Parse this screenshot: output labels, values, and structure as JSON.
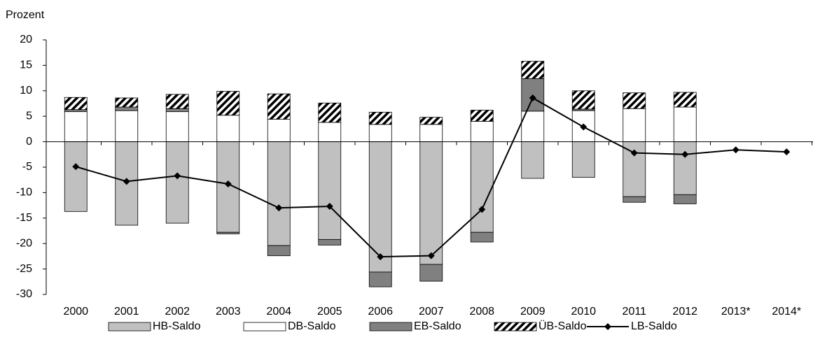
{
  "chart_data": {
    "type": "bar-line",
    "y_label": "Prozent",
    "categories": [
      "2000",
      "2001",
      "2002",
      "2003",
      "2004",
      "2005",
      "2006",
      "2007",
      "2008",
      "2009",
      "2010",
      "2011",
      "2012",
      "2013*",
      "2014*"
    ],
    "ylim": [
      -30,
      20
    ],
    "yticks": [
      -30,
      -25,
      -20,
      -15,
      -10,
      -5,
      0,
      5,
      10,
      15,
      20
    ],
    "grid": false,
    "legend": "bottom",
    "series": [
      {
        "name": "HB-Saldo",
        "type": "bar",
        "color": "#c0c0c0",
        "values": [
          -13.7,
          -16.4,
          -16.0,
          -17.8,
          -20.4,
          -19.2,
          -25.6,
          -24.1,
          -17.8,
          -7.2,
          -7.0,
          -10.8,
          -10.4,
          null,
          null
        ]
      },
      {
        "name": "DB-Saldo",
        "type": "bar",
        "color": "#ffffff",
        "values": [
          5.9,
          6.1,
          5.9,
          5.2,
          4.4,
          3.8,
          3.4,
          3.4,
          4.0,
          6.0,
          6.1,
          6.5,
          6.8,
          null,
          null
        ]
      },
      {
        "name": "EB-Saldo",
        "type": "bar",
        "color": "#808080",
        "values": [
          0.4,
          0.7,
          0.6,
          -0.3,
          -2.0,
          -1.1,
          -2.9,
          -3.3,
          -1.9,
          6.4,
          0.3,
          -1.1,
          -1.8,
          null,
          null
        ]
      },
      {
        "name": "ÜB-Saldo",
        "type": "bar",
        "color": "#000000",
        "pattern": "hatch",
        "values": [
          2.4,
          1.8,
          2.8,
          4.7,
          5.0,
          3.8,
          2.4,
          1.4,
          2.2,
          3.4,
          3.6,
          3.1,
          2.9,
          null,
          null
        ]
      },
      {
        "name": "LB-Saldo",
        "type": "line",
        "color": "#000000",
        "values": [
          -4.9,
          -7.8,
          -6.7,
          -8.3,
          -13.0,
          -12.7,
          -22.6,
          -22.4,
          -13.3,
          8.6,
          2.9,
          -2.2,
          -2.5,
          -1.6,
          -2.0
        ]
      }
    ]
  }
}
